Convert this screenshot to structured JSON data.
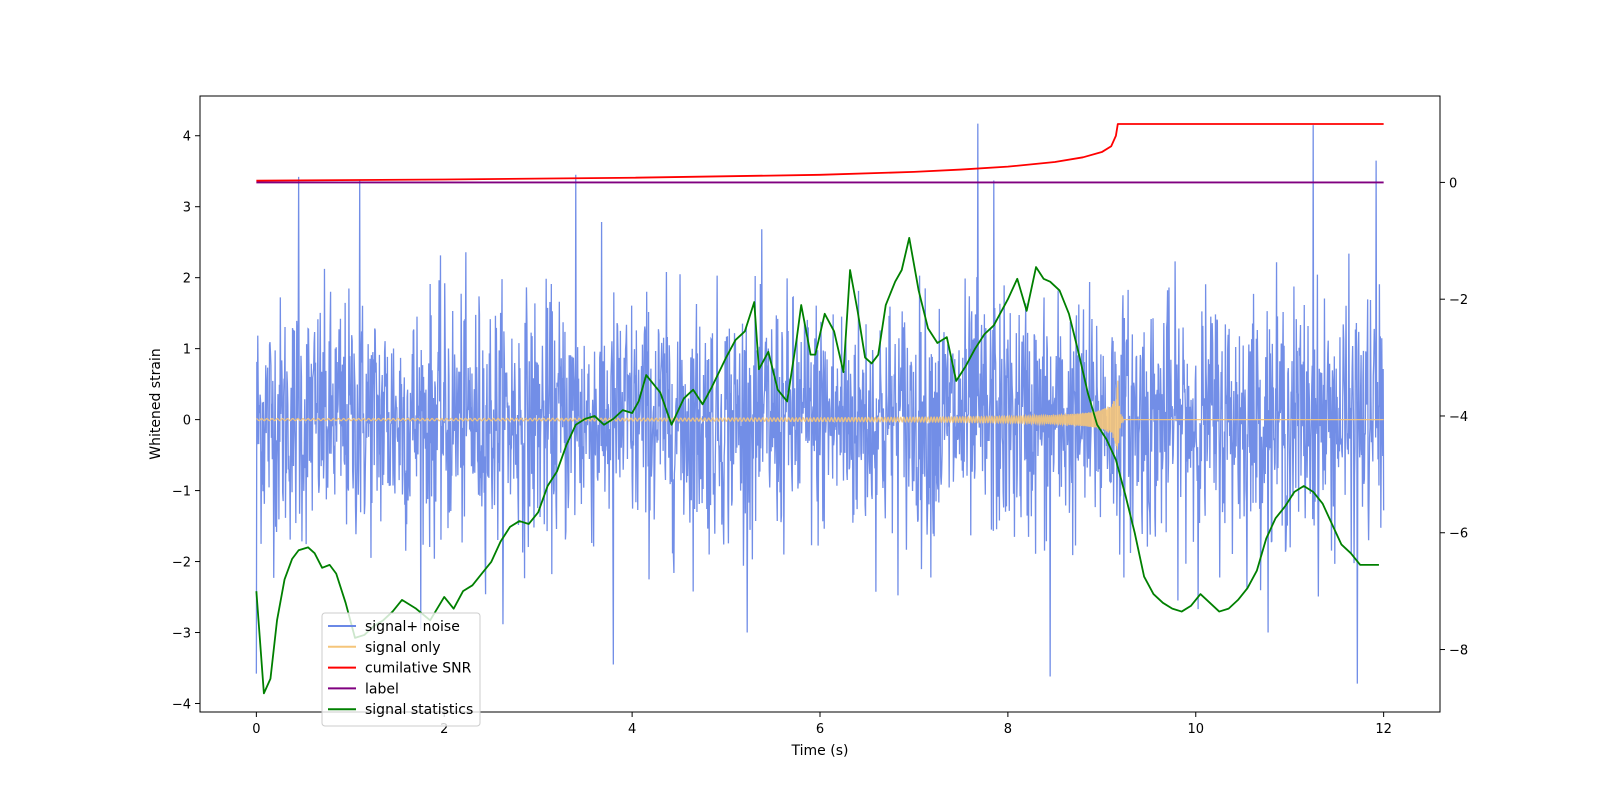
{
  "chart_data": {
    "type": "line",
    "title": "",
    "xlabel": "Time (s)",
    "ylabel_left": "Whitened strain",
    "ylabel_right": "",
    "xlim": [
      -0.6,
      12.6
    ],
    "ylim_left": [
      -4.12,
      4.56
    ],
    "ylim_right": [
      -9.07,
      1.48
    ],
    "x_ticks": [
      0,
      2,
      4,
      6,
      8,
      10,
      12
    ],
    "y_ticks_left": [
      -4,
      -3,
      -2,
      -1,
      0,
      1,
      2,
      3,
      4
    ],
    "y_ticks_right": [
      -8,
      -6,
      -4,
      -2,
      0
    ],
    "grid": false,
    "legend": {
      "placement": "lower-left"
    },
    "series": [
      {
        "name": "signal+ noise",
        "axis": "left",
        "color": "#6a88e6",
        "description": "dense noisy strain time series around zero",
        "x_range": [
          0,
          12
        ],
        "typical_range": [
          -2.6,
          2.6
        ],
        "peaks": [
          {
            "x": 0.45,
            "y": 3.42
          },
          {
            "x": 1.1,
            "y": 3.37
          },
          {
            "x": 3.4,
            "y": 3.45
          },
          {
            "x": 7.68,
            "y": 4.17
          },
          {
            "x": 7.85,
            "y": 3.37
          },
          {
            "x": 11.25,
            "y": 4.15
          },
          {
            "x": 11.92,
            "y": 3.65
          }
        ],
        "troughs": [
          {
            "x": 0.0,
            "y": -3.58
          },
          {
            "x": 3.8,
            "y": -3.45
          },
          {
            "x": 8.45,
            "y": -3.62
          },
          {
            "x": 11.72,
            "y": -3.72
          }
        ]
      },
      {
        "name": "signal only",
        "axis": "left",
        "color": "#f5c57a",
        "description": "chirp waveform near zero, amplitude growing until merger at ~9.17 s",
        "x_range": [
          0,
          12
        ],
        "merger_time": 9.17,
        "peak_amplitude": 0.55
      },
      {
        "name": "cumilative SNR",
        "axis": "right",
        "color": "#ff0000",
        "x": [
          0,
          2,
          4,
          6,
          7,
          7.5,
          8,
          8.5,
          8.8,
          9.0,
          9.1,
          9.15,
          9.17,
          9.2,
          10,
          11,
          12
        ],
        "y": [
          0.03,
          0.05,
          0.08,
          0.13,
          0.18,
          0.22,
          0.27,
          0.35,
          0.43,
          0.52,
          0.62,
          0.8,
          1.0,
          1.0,
          1.0,
          1.0,
          1.0
        ]
      },
      {
        "name": "label",
        "axis": "right",
        "color": "#800080",
        "x": [
          0,
          12
        ],
        "y": [
          0,
          0
        ]
      },
      {
        "name": "signal statistics",
        "axis": "right",
        "color": "#008000",
        "x": [
          0.0,
          0.08,
          0.15,
          0.22,
          0.3,
          0.38,
          0.45,
          0.55,
          0.62,
          0.7,
          0.78,
          0.85,
          0.95,
          1.05,
          1.15,
          1.25,
          1.35,
          1.45,
          1.55,
          1.7,
          1.85,
          2.0,
          2.1,
          2.2,
          2.3,
          2.4,
          2.5,
          2.6,
          2.7,
          2.8,
          2.9,
          3.0,
          3.1,
          3.2,
          3.3,
          3.4,
          3.5,
          3.6,
          3.7,
          3.8,
          3.9,
          4.0,
          4.07,
          4.15,
          4.3,
          4.42,
          4.55,
          4.65,
          4.75,
          4.85,
          5.0,
          5.1,
          5.2,
          5.3,
          5.35,
          5.45,
          5.55,
          5.65,
          5.75,
          5.8,
          5.9,
          5.95,
          6.05,
          6.15,
          6.25,
          6.32,
          6.4,
          6.48,
          6.55,
          6.62,
          6.7,
          6.8,
          6.87,
          6.95,
          7.05,
          7.15,
          7.25,
          7.35,
          7.45,
          7.55,
          7.65,
          7.75,
          7.85,
          8.0,
          8.1,
          8.2,
          8.3,
          8.38,
          8.45,
          8.55,
          8.65,
          8.75,
          8.85,
          8.95,
          9.05,
          9.15,
          9.25,
          9.35,
          9.45,
          9.55,
          9.65,
          9.75,
          9.85,
          9.95,
          10.05,
          10.15,
          10.25,
          10.35,
          10.45,
          10.55,
          10.65,
          10.75,
          10.85,
          10.95,
          11.05,
          11.15,
          11.25,
          11.35,
          11.45,
          11.55,
          11.65,
          11.75,
          11.85,
          11.95
        ],
        "y": [
          -7.0,
          -8.75,
          -8.5,
          -7.5,
          -6.8,
          -6.45,
          -6.3,
          -6.25,
          -6.35,
          -6.6,
          -6.55,
          -6.7,
          -7.2,
          -7.8,
          -7.75,
          -7.6,
          -7.5,
          -7.35,
          -7.15,
          -7.3,
          -7.5,
          -7.1,
          -7.3,
          -7.0,
          -6.9,
          -6.7,
          -6.5,
          -6.15,
          -5.9,
          -5.8,
          -5.85,
          -5.65,
          -5.2,
          -4.95,
          -4.5,
          -4.15,
          -4.05,
          -4.0,
          -4.15,
          -4.05,
          -3.9,
          -3.95,
          -3.75,
          -3.3,
          -3.6,
          -4.15,
          -3.7,
          -3.55,
          -3.8,
          -3.5,
          -3.0,
          -2.7,
          -2.55,
          -2.05,
          -3.2,
          -2.9,
          -3.55,
          -3.75,
          -2.7,
          -2.1,
          -2.95,
          -2.95,
          -2.25,
          -2.55,
          -3.25,
          -1.5,
          -2.2,
          -3.0,
          -3.1,
          -2.95,
          -2.1,
          -1.7,
          -1.5,
          -0.95,
          -1.85,
          -2.5,
          -2.75,
          -2.65,
          -3.4,
          -3.15,
          -2.85,
          -2.6,
          -2.45,
          -2.0,
          -1.65,
          -2.2,
          -1.45,
          -1.65,
          -1.7,
          -1.85,
          -2.25,
          -2.9,
          -3.6,
          -4.15,
          -4.4,
          -4.75,
          -5.35,
          -6.0,
          -6.75,
          -7.05,
          -7.2,
          -7.3,
          -7.35,
          -7.25,
          -7.05,
          -7.2,
          -7.35,
          -7.3,
          -7.15,
          -6.95,
          -6.65,
          -6.1,
          -5.75,
          -5.55,
          -5.3,
          -5.2,
          -5.3,
          -5.5,
          -5.85,
          -6.2,
          -6.35,
          -6.55,
          -6.55,
          -6.55
        ]
      }
    ]
  }
}
